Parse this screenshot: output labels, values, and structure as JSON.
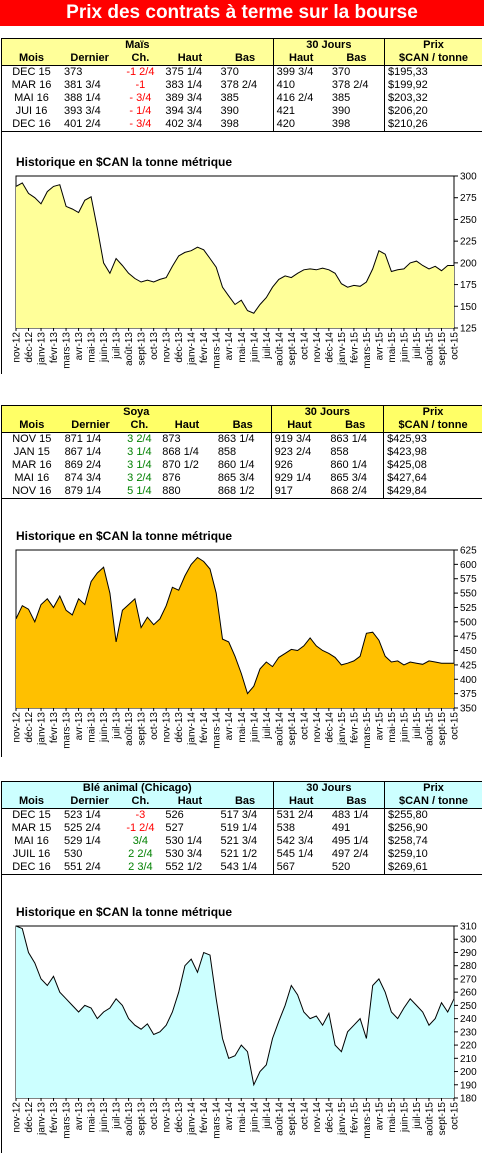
{
  "title": "Prix des contrats à terme sur la bourse",
  "colors": {
    "banner": "#ff0000",
    "mais_header": "#ffff99",
    "mais_fill": "#ffff99",
    "soya_header": "#ffff66",
    "soya_fill": "#ffc000",
    "ble_header": "#ccffff",
    "ble_fill": "#ccffff",
    "negative": "#ff0000",
    "positive": "#008000"
  },
  "columns": {
    "mois": "Mois",
    "dernier": "Dernier",
    "ch": "Ch.",
    "haut": "Haut",
    "bas": "Bas",
    "trente": "30 Jours",
    "prix": "Prix",
    "unit": "$CAN / tonne"
  },
  "chart_caption": "Historique en $CAN la tonne métrique",
  "sections": [
    {
      "name": "Maïs",
      "rows": [
        {
          "mois": "DEC 15",
          "dernier": "373",
          "ch": "-1 2/4",
          "dir": "neg",
          "haut": "375 1/4",
          "bas": "370",
          "h30": "399 3/4",
          "b30": "370",
          "prix": "$195,33"
        },
        {
          "mois": "MAR 16",
          "dernier": "381 3/4",
          "ch": "-1",
          "dir": "neg",
          "haut": "383 1/4",
          "bas": "378 2/4",
          "h30": "410",
          "b30": "378 2/4",
          "prix": "$199,92"
        },
        {
          "mois": "MAI 16",
          "dernier": "388 1/4",
          "ch": "- 3/4",
          "dir": "neg",
          "haut": "389 3/4",
          "bas": "385",
          "h30": "416 2/4",
          "b30": "385",
          "prix": "$203,32"
        },
        {
          "mois": "JUI 16",
          "dernier": "393 3/4",
          "ch": "- 1/4",
          "dir": "neg",
          "haut": "394 3/4",
          "bas": "390",
          "h30": "421",
          "b30": "390",
          "prix": "$206,20"
        },
        {
          "mois": "DEC 16",
          "dernier": "401 2/4",
          "ch": "- 3/4",
          "dir": "neg",
          "haut": "402 3/4",
          "bas": "398",
          "h30": "420",
          "b30": "398",
          "prix": "$210,26"
        }
      ]
    },
    {
      "name": "Soya",
      "rows": [
        {
          "mois": "NOV 15",
          "dernier": "871 1/4",
          "ch": "3 2/4",
          "dir": "pos",
          "haut": "873",
          "bas": "863 1/4",
          "h30": "919 3/4",
          "b30": "863 1/4",
          "prix": "$425,93"
        },
        {
          "mois": "JAN 15",
          "dernier": "867 1/4",
          "ch": "3 1/4",
          "dir": "pos",
          "haut": "868 1/4",
          "bas": "858",
          "h30": "923 2/4",
          "b30": "858",
          "prix": "$423,98"
        },
        {
          "mois": "MAR 16",
          "dernier": "869 2/4",
          "ch": "3 1/4",
          "dir": "pos",
          "haut": "870 1/2",
          "bas": "860 1/4",
          "h30": "926",
          "b30": "860 1/4",
          "prix": "$425,08"
        },
        {
          "mois": "MAI 16",
          "dernier": "874 3/4",
          "ch": "3 2/4",
          "dir": "pos",
          "haut": "876",
          "bas": "865 3/4",
          "h30": "929 1/4",
          "b30": "865 3/4",
          "prix": "$427,64"
        },
        {
          "mois": "NOV 16",
          "dernier": "879 1/4",
          "ch": "5 1/4",
          "dir": "pos",
          "haut": "880",
          "bas": "868 1/2",
          "h30": "917",
          "b30": "868 2/4",
          "prix": "$429,84"
        }
      ]
    },
    {
      "name": "Blé animal (Chicago)",
      "rows": [
        {
          "mois": "DEC 15",
          "dernier": "523 1/4",
          "ch": "-3",
          "dir": "neg",
          "haut": "526",
          "bas": "517 3/4",
          "h30": "531 2/4",
          "b30": "483 1/4",
          "prix": "$255,80"
        },
        {
          "mois": "MAR 15",
          "dernier": "525 2/4",
          "ch": "-1 2/4",
          "dir": "neg",
          "haut": "527",
          "bas": "519 1/4",
          "h30": "538",
          "b30": "491",
          "prix": "$256,90"
        },
        {
          "mois": "MAI 16",
          "dernier": "529 1/4",
          "ch": "3/4",
          "dir": "pos",
          "haut": "530 1/4",
          "bas": "521 3/4",
          "h30": "542 3/4",
          "b30": "495 1/4",
          "prix": "$258,74"
        },
        {
          "mois": "JUIL 16",
          "dernier": "530",
          "ch": "2 2/4",
          "dir": "pos",
          "haut": "530 3/4",
          "bas": "521 1/2",
          "h30": "545 1/4",
          "b30": "497 2/4",
          "prix": "$259,10"
        },
        {
          "mois": "DEC 16",
          "dernier": "551 2/4",
          "ch": "2 3/4",
          "dir": "pos",
          "haut": "552 1/2",
          "bas": "543 1/4",
          "h30": "567",
          "b30": "520",
          "prix": "$269,61"
        }
      ]
    }
  ],
  "chart_data": [
    {
      "type": "area",
      "title": "Historique en $CAN la tonne métrique",
      "x_ticks": [
        "nov-12",
        "déc-12",
        "janv-13",
        "févr-13",
        "mars-13",
        "avr-13",
        "mai-13",
        "juin-13",
        "juil-13",
        "août-13",
        "sept-13",
        "oct-13",
        "nov-13",
        "déc-13",
        "janv-14",
        "févr-14",
        "mars-14",
        "avr-14",
        "mai-14",
        "juin-14",
        "juil-14",
        "août-14",
        "sept-14",
        "oct-14",
        "nov-14",
        "déc-14",
        "janv-15",
        "févr-15",
        "mars-15",
        "avr-15",
        "mai-15",
        "juin-15",
        "juil-15",
        "août-15",
        "sept-15",
        "oct-15"
      ],
      "y_ticks": [
        125,
        150,
        175,
        200,
        225,
        250,
        275,
        300
      ],
      "ylim": [
        125,
        300
      ],
      "x": [
        0,
        0.5,
        1,
        1.5,
        2,
        2.5,
        3,
        3.5,
        4,
        4.5,
        5,
        5.5,
        6,
        6.5,
        7,
        7.5,
        8,
        8.5,
        9,
        9.5,
        10,
        10.5,
        11,
        11.5,
        12,
        12.5,
        13,
        13.5,
        14,
        14.5,
        15,
        15.5,
        16,
        16.5,
        17,
        17.5,
        18,
        18.5,
        19,
        19.5,
        20,
        20.5,
        21,
        21.5,
        22,
        22.5,
        23,
        23.5,
        24,
        24.5,
        25,
        25.5,
        26,
        26.5,
        27,
        27.5,
        28,
        28.5,
        29,
        29.5,
        30,
        30.5,
        31,
        31.5,
        32,
        32.5,
        33,
        33.5,
        34,
        34.5,
        35
      ],
      "values": [
        288,
        292,
        280,
        275,
        268,
        282,
        288,
        290,
        265,
        262,
        258,
        272,
        276,
        240,
        200,
        188,
        205,
        197,
        188,
        182,
        178,
        180,
        178,
        181,
        183,
        196,
        208,
        212,
        214,
        218,
        215,
        205,
        195,
        172,
        162,
        152,
        157,
        145,
        142,
        152,
        160,
        172,
        181,
        185,
        183,
        188,
        192,
        193,
        192,
        194,
        192,
        188,
        176,
        172,
        174,
        173,
        178,
        193,
        214,
        210,
        190,
        192,
        193,
        200,
        202,
        197,
        193,
        196,
        191,
        197,
        197
      ]
    },
    {
      "type": "area",
      "title": "Historique en $CAN la tonne métrique",
      "x_ticks": [
        "nov-12",
        "déc-12",
        "janv-13",
        "févr-13",
        "mars-13",
        "avr-13",
        "mai-13",
        "juin-13",
        "juil-13",
        "août-13",
        "sept-13",
        "oct-13",
        "nov-13",
        "déc-13",
        "janv-14",
        "févr-14",
        "mars-14",
        "avr-14",
        "mai-14",
        "juin-14",
        "juil-14",
        "août-14",
        "sept-14",
        "oct-14",
        "nov-14",
        "déc-14",
        "janv-15",
        "févr-15",
        "mars-15",
        "avr-15",
        "mai-15",
        "juin-15",
        "juil-15",
        "août-15",
        "sept-15",
        "oct-15"
      ],
      "y_ticks": [
        350,
        375,
        400,
        425,
        450,
        475,
        500,
        525,
        550,
        575,
        600,
        625
      ],
      "ylim": [
        350,
        625
      ],
      "x": [
        0,
        0.5,
        1,
        1.5,
        2,
        2.5,
        3,
        3.5,
        4,
        4.5,
        5,
        5.5,
        6,
        6.5,
        7,
        7.5,
        8,
        8.5,
        9,
        9.5,
        10,
        10.5,
        11,
        11.5,
        12,
        12.5,
        13,
        13.5,
        14,
        14.5,
        15,
        15.5,
        16,
        16.5,
        17,
        17.5,
        18,
        18.5,
        19,
        19.5,
        20,
        20.5,
        21,
        21.5,
        22,
        22.5,
        23,
        23.5,
        24,
        24.5,
        25,
        25.5,
        26,
        26.5,
        27,
        27.5,
        28,
        28.5,
        29,
        29.5,
        30,
        30.5,
        31,
        31.5,
        32,
        32.5,
        33,
        33.5,
        34,
        34.5,
        35
      ],
      "values": [
        505,
        528,
        522,
        500,
        530,
        540,
        525,
        545,
        520,
        512,
        540,
        530,
        570,
        585,
        595,
        550,
        465,
        520,
        530,
        540,
        490,
        508,
        495,
        505,
        528,
        560,
        555,
        580,
        600,
        612,
        605,
        592,
        550,
        470,
        465,
        440,
        410,
        375,
        388,
        418,
        430,
        422,
        438,
        445,
        452,
        450,
        458,
        472,
        458,
        450,
        445,
        438,
        425,
        428,
        432,
        440,
        480,
        482,
        468,
        440,
        430,
        432,
        425,
        430,
        428,
        426,
        432,
        430,
        428,
        428,
        428
      ]
    },
    {
      "type": "area",
      "title": "Historique en $CAN la tonne métrique",
      "x_ticks": [
        "nov-12",
        "déc-12",
        "janv-13",
        "févr-13",
        "mars-13",
        "avr-13",
        "mai-13",
        "juin-13",
        "juil-13",
        "août-13",
        "sept-13",
        "oct-13",
        "nov-13",
        "déc-13",
        "janv-14",
        "févr-14",
        "mars-14",
        "avr-14",
        "mai-14",
        "juin-14",
        "juil-14",
        "août-14",
        "sept-14",
        "oct-14",
        "nov-14",
        "déc-14",
        "janv-15",
        "févr-15",
        "mars-15",
        "avr-15",
        "mai-15",
        "juin-15",
        "juil-15",
        "août-15",
        "sept-15",
        "oct-15"
      ],
      "y_ticks": [
        180,
        190,
        200,
        210,
        220,
        230,
        240,
        250,
        260,
        270,
        280,
        290,
        300,
        310
      ],
      "ylim": [
        180,
        310
      ],
      "x": [
        0,
        0.5,
        1,
        1.5,
        2,
        2.5,
        3,
        3.5,
        4,
        4.5,
        5,
        5.5,
        6,
        6.5,
        7,
        7.5,
        8,
        8.5,
        9,
        9.5,
        10,
        10.5,
        11,
        11.5,
        12,
        12.5,
        13,
        13.5,
        14,
        14.5,
        15,
        15.5,
        16,
        16.5,
        17,
        17.5,
        18,
        18.5,
        19,
        19.5,
        20,
        20.5,
        21,
        21.5,
        22,
        22.5,
        23,
        23.5,
        24,
        24.5,
        25,
        25.5,
        26,
        26.5,
        27,
        27.5,
        28,
        28.5,
        29,
        29.5,
        30,
        30.5,
        31,
        31.5,
        32,
        32.5,
        33,
        33.5,
        34,
        34.5,
        35
      ],
      "values": [
        310,
        308,
        290,
        282,
        270,
        265,
        272,
        260,
        255,
        250,
        245,
        250,
        248,
        240,
        245,
        248,
        255,
        250,
        240,
        235,
        232,
        236,
        228,
        230,
        235,
        245,
        260,
        280,
        285,
        275,
        290,
        288,
        255,
        225,
        210,
        212,
        220,
        215,
        190,
        200,
        205,
        225,
        238,
        250,
        265,
        258,
        245,
        240,
        242,
        235,
        244,
        220,
        215,
        230,
        235,
        240,
        225,
        265,
        270,
        260,
        245,
        240,
        248,
        255,
        250,
        245,
        235,
        240,
        252,
        245,
        255
      ]
    }
  ]
}
